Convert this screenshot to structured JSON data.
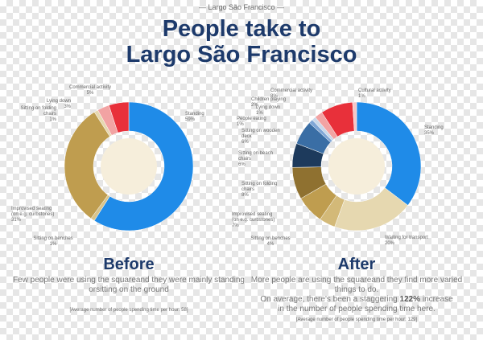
{
  "header": {
    "kicker": "— Largo São Francisco —",
    "title_line1": "People take to",
    "title_line2": "Largo São Francisco"
  },
  "chart_data": [
    {
      "type": "pie",
      "title": "Before",
      "description": [
        "Few people were using the square",
        "and they were mainly standing or",
        "sitting on the ground"
      ],
      "note": "[Average number of people spending time per hour: 58]",
      "categories": [
        "Standing",
        "Sitting on benches",
        "Improvised seating (on e.g. curbstones)",
        "Sitting on folding chairs",
        "Lying down",
        "Commercial activity"
      ],
      "values": [
        59,
        1,
        31,
        1,
        3,
        5
      ],
      "value_labels": [
        "59%",
        "1%",
        "31%",
        "1%",
        "3%",
        "5%"
      ],
      "colors": [
        "#1f8be8",
        "#d9c48a",
        "#bf9d4f",
        "#e6d8b0",
        "#f2a3a3",
        "#e8303a"
      ]
    },
    {
      "type": "pie",
      "title": "After",
      "description": [
        "More people are using the square",
        "and they find more varied things to do."
      ],
      "emphasis": [
        "On average, there's been a staggering",
        "122%",
        "increase"
      ],
      "description_tail": "in the number of people spending time here.",
      "note": "[Average number of people spending time per hour: 129]",
      "categories": [
        "Standing",
        "Waiting for transport",
        "Sitting on benches",
        "Improvised seating (on e.g. curbstones)",
        "Sitting on folding chairs",
        "Sitting on beach chairs",
        "Sitting on wooden deck",
        "People eating",
        "Lying down",
        "Children playing",
        "Commercial activity",
        "Cultural activity"
      ],
      "values": [
        35,
        20,
        4,
        7,
        8,
        6,
        6,
        1,
        1,
        2,
        8,
        1
      ],
      "value_labels": [
        "35%",
        "20%",
        "4%",
        "7%",
        "8%",
        "6%",
        "6%",
        "1%",
        "1%",
        "2%",
        "8%",
        "1%"
      ],
      "colors": [
        "#1f8be8",
        "#e6d8b0",
        "#d3b978",
        "#bf9d4f",
        "#8f7130",
        "#1d3a5c",
        "#3a6ea5",
        "#7fa6d6",
        "#c9d8ea",
        "#f2a3a3",
        "#e8303a",
        "#f5c6c6"
      ]
    }
  ]
}
